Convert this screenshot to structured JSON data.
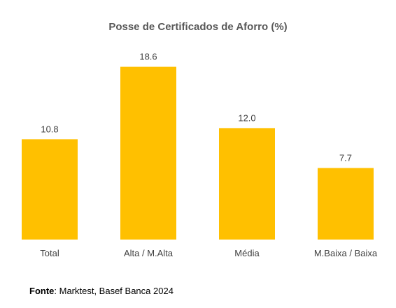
{
  "chart_data": {
    "type": "bar",
    "title": "Posse de Certificados de Aforro (%)",
    "categories": [
      "Total",
      "Alta / M.Alta",
      "Média",
      "M.Baixa / Baixa"
    ],
    "values": [
      10.8,
      18.6,
      12.0,
      7.7
    ],
    "value_labels": [
      "10.8",
      "18.6",
      "12.0",
      "7.7"
    ],
    "xlabel": "",
    "ylabel": "",
    "ylim": [
      0,
      20
    ],
    "grid": false,
    "legend": "none",
    "bar_color": "#FFC000"
  },
  "source": {
    "label": "Fonte",
    "text": ": Marktest, Basef Banca 2024"
  }
}
